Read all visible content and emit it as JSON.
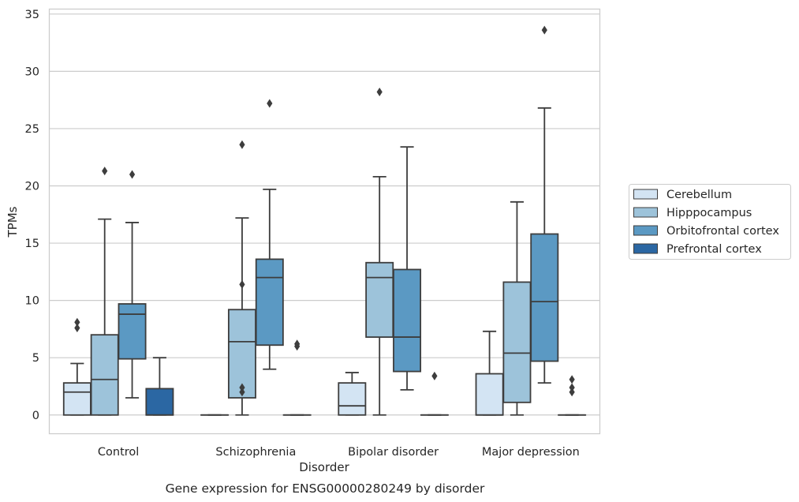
{
  "chart_data": {
    "type": "boxplot",
    "title": "",
    "caption": "Gene expression for ENSG00000280249 by disorder",
    "xlabel": "Disorder",
    "ylabel": "TPMs",
    "ylim": [
      -1.6,
      35.4
    ],
    "yticks": [
      0,
      5,
      10,
      15,
      20,
      25,
      30,
      35
    ],
    "grid": "horizontal",
    "legend_position": "right",
    "categories": [
      "Control",
      "Schizophrenia",
      "Bipolar disorder",
      "Major depression"
    ],
    "series": [
      {
        "name": "Cerebellum",
        "color": "#d3e4f3",
        "boxes": [
          {
            "category": "Control",
            "q1": 0,
            "median": 2.0,
            "q3": 2.8,
            "whisker_low": 0,
            "whisker_high": 4.5,
            "outliers": [
              7.6,
              8.1
            ]
          },
          {
            "category": "Schizophrenia",
            "q1": 0,
            "median": 0,
            "q3": 0,
            "whisker_low": 0,
            "whisker_high": 0,
            "outliers": []
          },
          {
            "category": "Bipolar disorder",
            "q1": 0,
            "median": 0.8,
            "q3": 2.8,
            "whisker_low": 0,
            "whisker_high": 3.7,
            "outliers": []
          },
          {
            "category": "Major depression",
            "q1": 0,
            "median": 0,
            "q3": 3.6,
            "whisker_low": 0,
            "whisker_high": 7.3,
            "outliers": []
          }
        ]
      },
      {
        "name": "Hipppocampus",
        "color": "#9dc3da",
        "boxes": [
          {
            "category": "Control",
            "q1": 0,
            "median": 3.1,
            "q3": 7.0,
            "whisker_low": 0,
            "whisker_high": 17.1,
            "outliers": [
              21.3
            ]
          },
          {
            "category": "Schizophrenia",
            "q1": 1.5,
            "median": 6.4,
            "q3": 9.2,
            "whisker_low": 0,
            "whisker_high": 17.2,
            "outliers": [
              2.0,
              2.4,
              11.4,
              23.6
            ]
          },
          {
            "category": "Bipolar disorder",
            "q1": 6.8,
            "median": 12.0,
            "q3": 13.3,
            "whisker_low": 0,
            "whisker_high": 20.8,
            "outliers": [
              28.2
            ]
          },
          {
            "category": "Major depression",
            "q1": 1.1,
            "median": 5.4,
            "q3": 11.6,
            "whisker_low": 0,
            "whisker_high": 18.6,
            "outliers": []
          }
        ]
      },
      {
        "name": "Orbitofrontal cortex",
        "color": "#5b99c3",
        "boxes": [
          {
            "category": "Control",
            "q1": 4.9,
            "median": 8.8,
            "q3": 9.7,
            "whisker_low": 1.5,
            "whisker_high": 16.8,
            "outliers": [
              21.0
            ]
          },
          {
            "category": "Schizophrenia",
            "q1": 6.1,
            "median": 12.0,
            "q3": 13.6,
            "whisker_low": 4.0,
            "whisker_high": 19.7,
            "outliers": [
              27.2
            ]
          },
          {
            "category": "Bipolar disorder",
            "q1": 3.8,
            "median": 6.8,
            "q3": 12.7,
            "whisker_low": 2.2,
            "whisker_high": 23.4,
            "outliers": []
          },
          {
            "category": "Major depression",
            "q1": 4.7,
            "median": 9.9,
            "q3": 15.8,
            "whisker_low": 2.8,
            "whisker_high": 26.8,
            "outliers": [
              33.6
            ]
          }
        ]
      },
      {
        "name": "Prefrontal cortex",
        "color": "#2b67a3",
        "boxes": [
          {
            "category": "Control",
            "q1": 0,
            "median": 0,
            "q3": 2.3,
            "whisker_low": 0,
            "whisker_high": 5.0,
            "outliers": []
          },
          {
            "category": "Schizophrenia",
            "q1": 0,
            "median": 0,
            "q3": 0,
            "whisker_low": 0,
            "whisker_high": 0,
            "outliers": [
              6.0,
              6.2
            ]
          },
          {
            "category": "Bipolar disorder",
            "q1": 0,
            "median": 0,
            "q3": 0,
            "whisker_low": 0,
            "whisker_high": 0,
            "outliers": [
              3.4
            ]
          },
          {
            "category": "Major depression",
            "q1": 0,
            "median": 0,
            "q3": 0,
            "whisker_low": 0,
            "whisker_high": 0,
            "outliers": [
              2.0,
              2.4,
              3.1
            ]
          }
        ]
      }
    ]
  }
}
